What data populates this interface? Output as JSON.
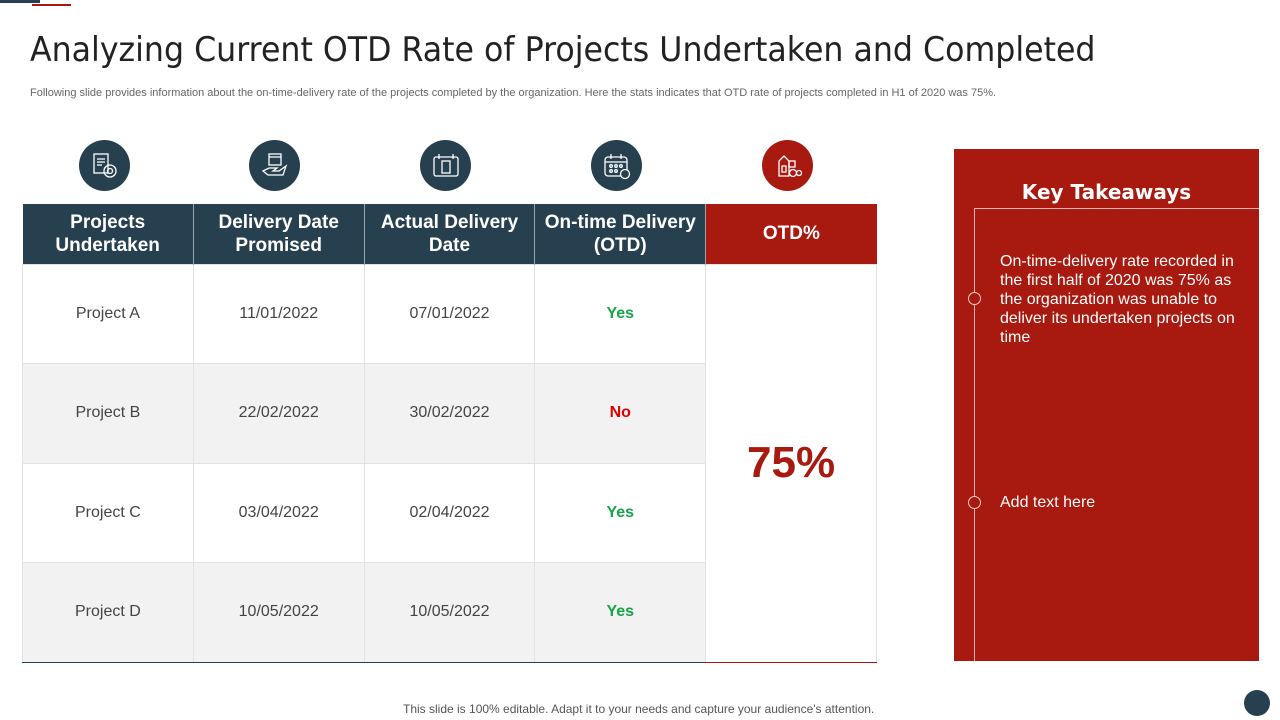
{
  "title": "Analyzing Current OTD Rate of Projects Undertaken and Completed",
  "subtitle": "Following slide provides information about the on-time-delivery rate of the projects completed by the organization. Here the stats indicates that OTD rate of projects completed in H1 of 2020 was 75%.",
  "colors": {
    "navy": "#27404f",
    "red": "#a8190f",
    "yes": "#16a34a",
    "no": "#dd0000"
  },
  "icons": [
    "document-gear-icon",
    "calendar-hand-icon",
    "calendar-receipt-icon",
    "calendar-clock-icon",
    "bottle-coins-icon"
  ],
  "table": {
    "headers": [
      "Projects Undertaken",
      "Delivery Date Promised",
      "Actual Delivery Date",
      "On-time Delivery (OTD)",
      "OTD%"
    ],
    "rows": [
      [
        "Project A",
        "11/01/2022",
        "07/01/2022",
        "Yes"
      ],
      [
        "Project B",
        "22/02/2022",
        "30/02/2022",
        "No"
      ],
      [
        "Project C",
        "03/04/2022",
        "02/04/2022",
        "Yes"
      ],
      [
        "Project D",
        "10/05/2022",
        "10/05/2022",
        "Yes"
      ]
    ],
    "otd_value": "75%"
  },
  "takeaways": {
    "title": "Key Takeaways",
    "points": [
      "On-time-delivery  rate recorded in the first half of 2020 was 75% as the organization was unable to deliver its undertaken projects on time",
      "Add text here"
    ]
  },
  "footer": "This slide is 100% editable. Adapt it to your needs and capture your audience's attention."
}
